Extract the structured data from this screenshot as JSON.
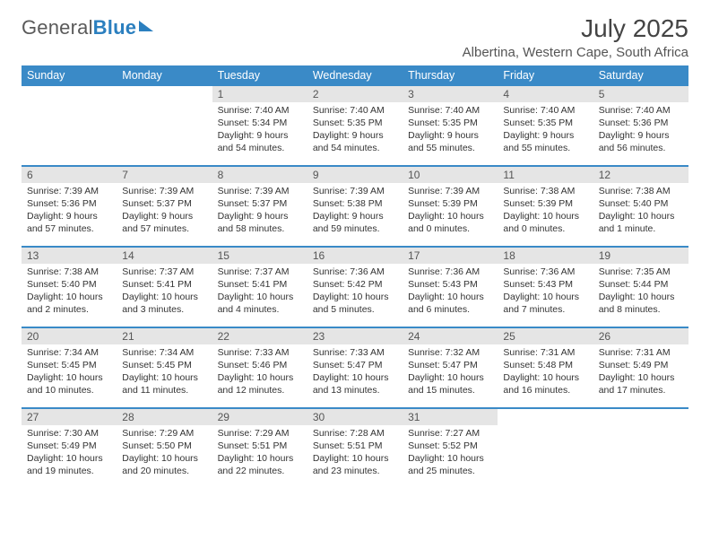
{
  "logo": {
    "text1": "General",
    "text2": "Blue"
  },
  "title": "July 2025",
  "location": "Albertina, Western Cape, South Africa",
  "colors": {
    "header_bg": "#3a8ac7",
    "header_fg": "#ffffff",
    "daynum_bg": "#e5e5e5",
    "sep": "#3a8ac7",
    "logo_gray": "#5a5a5a",
    "logo_blue": "#2b7fbf",
    "text": "#333333"
  },
  "weekdays": [
    "Sunday",
    "Monday",
    "Tuesday",
    "Wednesday",
    "Thursday",
    "Friday",
    "Saturday"
  ],
  "weeks": [
    [
      null,
      null,
      {
        "n": "1",
        "sr": "7:40 AM",
        "ss": "5:34 PM",
        "dl": "9 hours and 54 minutes."
      },
      {
        "n": "2",
        "sr": "7:40 AM",
        "ss": "5:35 PM",
        "dl": "9 hours and 54 minutes."
      },
      {
        "n": "3",
        "sr": "7:40 AM",
        "ss": "5:35 PM",
        "dl": "9 hours and 55 minutes."
      },
      {
        "n": "4",
        "sr": "7:40 AM",
        "ss": "5:35 PM",
        "dl": "9 hours and 55 minutes."
      },
      {
        "n": "5",
        "sr": "7:40 AM",
        "ss": "5:36 PM",
        "dl": "9 hours and 56 minutes."
      }
    ],
    [
      {
        "n": "6",
        "sr": "7:39 AM",
        "ss": "5:36 PM",
        "dl": "9 hours and 57 minutes."
      },
      {
        "n": "7",
        "sr": "7:39 AM",
        "ss": "5:37 PM",
        "dl": "9 hours and 57 minutes."
      },
      {
        "n": "8",
        "sr": "7:39 AM",
        "ss": "5:37 PM",
        "dl": "9 hours and 58 minutes."
      },
      {
        "n": "9",
        "sr": "7:39 AM",
        "ss": "5:38 PM",
        "dl": "9 hours and 59 minutes."
      },
      {
        "n": "10",
        "sr": "7:39 AM",
        "ss": "5:39 PM",
        "dl": "10 hours and 0 minutes."
      },
      {
        "n": "11",
        "sr": "7:38 AM",
        "ss": "5:39 PM",
        "dl": "10 hours and 0 minutes."
      },
      {
        "n": "12",
        "sr": "7:38 AM",
        "ss": "5:40 PM",
        "dl": "10 hours and 1 minute."
      }
    ],
    [
      {
        "n": "13",
        "sr": "7:38 AM",
        "ss": "5:40 PM",
        "dl": "10 hours and 2 minutes."
      },
      {
        "n": "14",
        "sr": "7:37 AM",
        "ss": "5:41 PM",
        "dl": "10 hours and 3 minutes."
      },
      {
        "n": "15",
        "sr": "7:37 AM",
        "ss": "5:41 PM",
        "dl": "10 hours and 4 minutes."
      },
      {
        "n": "16",
        "sr": "7:36 AM",
        "ss": "5:42 PM",
        "dl": "10 hours and 5 minutes."
      },
      {
        "n": "17",
        "sr": "7:36 AM",
        "ss": "5:43 PM",
        "dl": "10 hours and 6 minutes."
      },
      {
        "n": "18",
        "sr": "7:36 AM",
        "ss": "5:43 PM",
        "dl": "10 hours and 7 minutes."
      },
      {
        "n": "19",
        "sr": "7:35 AM",
        "ss": "5:44 PM",
        "dl": "10 hours and 8 minutes."
      }
    ],
    [
      {
        "n": "20",
        "sr": "7:34 AM",
        "ss": "5:45 PM",
        "dl": "10 hours and 10 minutes."
      },
      {
        "n": "21",
        "sr": "7:34 AM",
        "ss": "5:45 PM",
        "dl": "10 hours and 11 minutes."
      },
      {
        "n": "22",
        "sr": "7:33 AM",
        "ss": "5:46 PM",
        "dl": "10 hours and 12 minutes."
      },
      {
        "n": "23",
        "sr": "7:33 AM",
        "ss": "5:47 PM",
        "dl": "10 hours and 13 minutes."
      },
      {
        "n": "24",
        "sr": "7:32 AM",
        "ss": "5:47 PM",
        "dl": "10 hours and 15 minutes."
      },
      {
        "n": "25",
        "sr": "7:31 AM",
        "ss": "5:48 PM",
        "dl": "10 hours and 16 minutes."
      },
      {
        "n": "26",
        "sr": "7:31 AM",
        "ss": "5:49 PM",
        "dl": "10 hours and 17 minutes."
      }
    ],
    [
      {
        "n": "27",
        "sr": "7:30 AM",
        "ss": "5:49 PM",
        "dl": "10 hours and 19 minutes."
      },
      {
        "n": "28",
        "sr": "7:29 AM",
        "ss": "5:50 PM",
        "dl": "10 hours and 20 minutes."
      },
      {
        "n": "29",
        "sr": "7:29 AM",
        "ss": "5:51 PM",
        "dl": "10 hours and 22 minutes."
      },
      {
        "n": "30",
        "sr": "7:28 AM",
        "ss": "5:51 PM",
        "dl": "10 hours and 23 minutes."
      },
      {
        "n": "31",
        "sr": "7:27 AM",
        "ss": "5:52 PM",
        "dl": "10 hours and 25 minutes."
      },
      null,
      null
    ]
  ],
  "labels": {
    "sunrise": "Sunrise: ",
    "sunset": "Sunset: ",
    "daylight": "Daylight: "
  }
}
